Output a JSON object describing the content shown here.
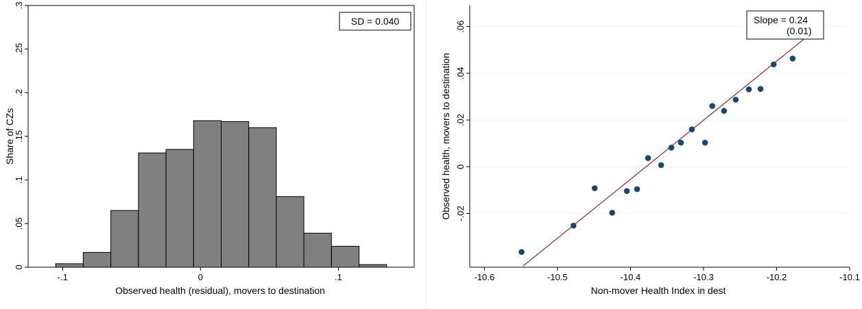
{
  "chart_data": [
    {
      "type": "bar",
      "subtype": "histogram",
      "xlabel": "Observed health (residual), movers to destination",
      "ylabel": "Share of CZs",
      "xlim": [
        -0.125,
        0.155
      ],
      "ylim": [
        0,
        0.3
      ],
      "xticks": [
        -0.1,
        0,
        0.1
      ],
      "xtick_labels": [
        "-.1",
        "0",
        ".1"
      ],
      "yticks": [
        0,
        0.05,
        0.1,
        0.15,
        0.2,
        0.25,
        0.3
      ],
      "ytick_labels": [
        "0",
        ".05",
        ".1",
        ".15",
        ".2",
        ".25",
        ".3"
      ],
      "bin_edges": [
        -0.105,
        -0.085,
        -0.065,
        -0.045,
        -0.025,
        -0.005,
        0.015,
        0.035,
        0.055,
        0.075,
        0.095,
        0.115,
        0.135
      ],
      "values": [
        0.004,
        0.017,
        0.065,
        0.131,
        0.135,
        0.168,
        0.167,
        0.16,
        0.081,
        0.039,
        0.024,
        0.003
      ],
      "bar_color": "#808080",
      "annotation": "SD = 0.040",
      "legend_position": "top-right",
      "grid": false
    },
    {
      "type": "scatter",
      "xlabel": "Non-mover Health Index in dest",
      "ylabel": "Observed health, movers to destination",
      "xlim": [
        -10.62,
        -10.1
      ],
      "ylim": [
        -0.043,
        0.069
      ],
      "xticks": [
        -10.6,
        -10.5,
        -10.4,
        -10.3,
        -10.2,
        -10.1
      ],
      "xtick_labels": [
        "-10.6",
        "-10.5",
        "-10.4",
        "-10.3",
        "-10.2",
        "-10.1"
      ],
      "yticks": [
        -0.02,
        0,
        0.02,
        0.04,
        0.06
      ],
      "ytick_labels": [
        "-.02",
        "0",
        ".02",
        ".04",
        ".06"
      ],
      "x": [
        -10.549,
        -10.478,
        -10.449,
        -10.425,
        -10.405,
        -10.391,
        -10.376,
        -10.358,
        -10.344,
        -10.331,
        -10.316,
        -10.298,
        -10.288,
        -10.272,
        -10.256,
        -10.238,
        -10.222,
        -10.204,
        -10.178
      ],
      "y": [
        -0.0365,
        -0.0252,
        -0.0092,
        -0.0197,
        -0.0104,
        -0.0096,
        0.0037,
        0.0007,
        0.0082,
        0.0103,
        0.016,
        0.0103,
        0.026,
        0.0239,
        0.0287,
        0.0331,
        0.0333,
        0.0438,
        0.0463
      ],
      "fit_line": {
        "x": [
          -10.547,
          -10.163
        ],
        "y": [
          -0.0425,
          0.0545
        ]
      },
      "point_color": "#1a476f",
      "line_color": "#90353b",
      "grid": true,
      "annotation": {
        "line1": "Slope = 0.24",
        "line2": "(0.01)"
      },
      "legend_position": "top-right"
    }
  ]
}
